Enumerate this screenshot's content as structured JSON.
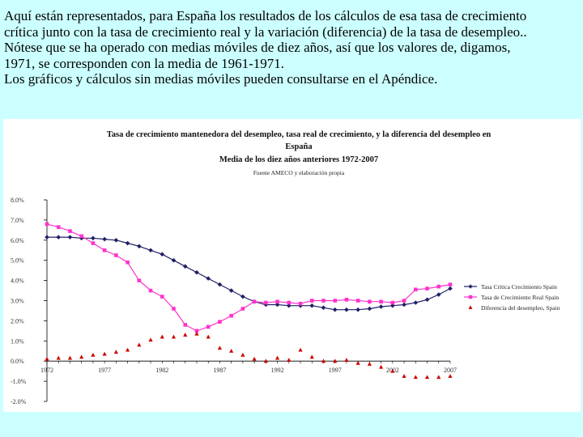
{
  "intro": {
    "lines": [
      "Aquí están representados, para España los resultados de los cálculos de esa tasa de crecimiento",
      "crítica junto con la tasa de crecimiento real y la variación (diferencia) de la tasa de desempleo..",
      "Nótese que se ha operado con medias móviles de diez años, así que los valores de, digamos,",
      "1971, se corresponden con la media de 1961-1971.",
      "Los gráficos y cálculos sin medias móviles pueden consultarse en el Apéndice."
    ]
  },
  "chart_data": {
    "type": "line",
    "title": "Tasa de crecimiento mantenedora del desempleo,  tasa real de crecimiento, y la diferencia del desempleo en España",
    "title_lines": [
      "Tasa de crecimiento mantenedora del desempleo,  tasa real de crecimiento, y la diferencia del desempleo en",
      "España"
    ],
    "subtitle": "Media de los diez años anteriores 1972-2007",
    "source": "Fuente AMECO y elaboración propia",
    "xlabel": "",
    "ylabel": "",
    "ylim": [
      -2.0,
      8.0
    ],
    "y_ticks": [
      "8.0%",
      "7.0%",
      "6.0%",
      "5.0%",
      "4.0%",
      "3.0%",
      "2.0%",
      "1.0%",
      "0.0%",
      "-1.0%",
      "-2.0%"
    ],
    "x_ticks": [
      "1972",
      "1977",
      "1982",
      "1987",
      "1992",
      "1997",
      "2002",
      "2007"
    ],
    "x": [
      1972,
      1973,
      1974,
      1975,
      1976,
      1977,
      1978,
      1979,
      1980,
      1981,
      1982,
      1983,
      1984,
      1985,
      1986,
      1987,
      1988,
      1989,
      1990,
      1991,
      1992,
      1993,
      1994,
      1995,
      1996,
      1997,
      1998,
      1999,
      2000,
      2001,
      2002,
      2003,
      2004,
      2005,
      2006,
      2007
    ],
    "legend_position": "right",
    "series": [
      {
        "name": "Tasa Crítica Crecimiento Spain",
        "color": "#1f1f66",
        "marker": "diamond",
        "values": [
          6.15,
          6.15,
          6.15,
          6.1,
          6.1,
          6.05,
          6.0,
          5.85,
          5.7,
          5.5,
          5.3,
          5.0,
          4.7,
          4.4,
          4.1,
          3.8,
          3.5,
          3.2,
          2.95,
          2.8,
          2.8,
          2.75,
          2.75,
          2.75,
          2.65,
          2.55,
          2.55,
          2.55,
          2.6,
          2.7,
          2.75,
          2.8,
          2.9,
          3.05,
          3.3,
          3.6
        ]
      },
      {
        "name": "Tasa de Crecimiento Real Spain",
        "color": "#ff33cc",
        "marker": "square",
        "values": [
          6.8,
          6.65,
          6.45,
          6.2,
          5.85,
          5.5,
          5.25,
          4.9,
          4.0,
          3.5,
          3.2,
          2.6,
          1.8,
          1.5,
          1.7,
          1.95,
          2.25,
          2.6,
          2.95,
          2.9,
          2.95,
          2.9,
          2.85,
          3.0,
          3.0,
          3.0,
          3.05,
          3.0,
          2.95,
          2.95,
          2.9,
          3.0,
          3.55,
          3.6,
          3.7,
          3.8
        ]
      },
      {
        "name": "Diferencia del desempleo, Spain",
        "color": "#cc0000",
        "marker": "triangle",
        "values": [
          0.1,
          0.15,
          0.15,
          0.2,
          0.3,
          0.35,
          0.45,
          0.55,
          0.8,
          1.05,
          1.2,
          1.2,
          1.3,
          1.35,
          1.2,
          0.65,
          0.5,
          0.3,
          0.1,
          0.0,
          0.15,
          0.05,
          0.55,
          0.2,
          0.0,
          0.0,
          0.05,
          -0.1,
          -0.15,
          -0.3,
          -0.5,
          -0.75,
          -0.8,
          -0.8,
          -0.8,
          -0.75
        ]
      }
    ]
  }
}
